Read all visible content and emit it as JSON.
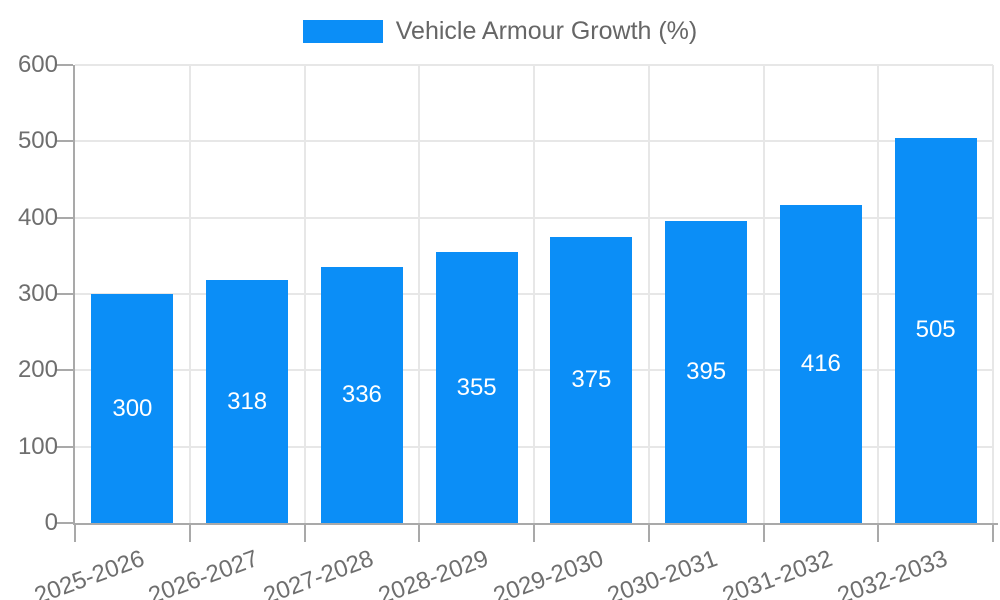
{
  "legend": {
    "position": "top",
    "series_label": "Vehicle Armour Growth (%)"
  },
  "chart_data": {
    "type": "bar",
    "title": "",
    "categories": [
      "2025-2026",
      "2026-2027",
      "2027-2028",
      "2028-2029",
      "2029-2030",
      "2030-2031",
      "2031-2032",
      "2032-2033"
    ],
    "series": [
      {
        "name": "Vehicle Armour Growth (%)",
        "values": [
          300,
          318,
          336,
          355,
          375,
          395,
          416,
          505
        ],
        "color": "#0b8ef7"
      }
    ],
    "value_labels": [
      300,
      318,
      336,
      355,
      375,
      395,
      416,
      505
    ],
    "value_label_position": "inside-center",
    "xlabel": "",
    "ylabel": "",
    "ylim": [
      0,
      600
    ],
    "yticks": [
      0,
      100,
      200,
      300,
      400,
      500,
      600
    ],
    "grid": true,
    "legend_position": "top",
    "x_tick_rotation_deg": -20
  },
  "colors": {
    "bar": "#0b8ef7",
    "axis": "#a9a9a9",
    "grid": "#e7e7e7",
    "tick_text": "#6e6e6e",
    "legend_text": "#666666",
    "value_text": "#ffffff",
    "background": "#ffffff"
  }
}
